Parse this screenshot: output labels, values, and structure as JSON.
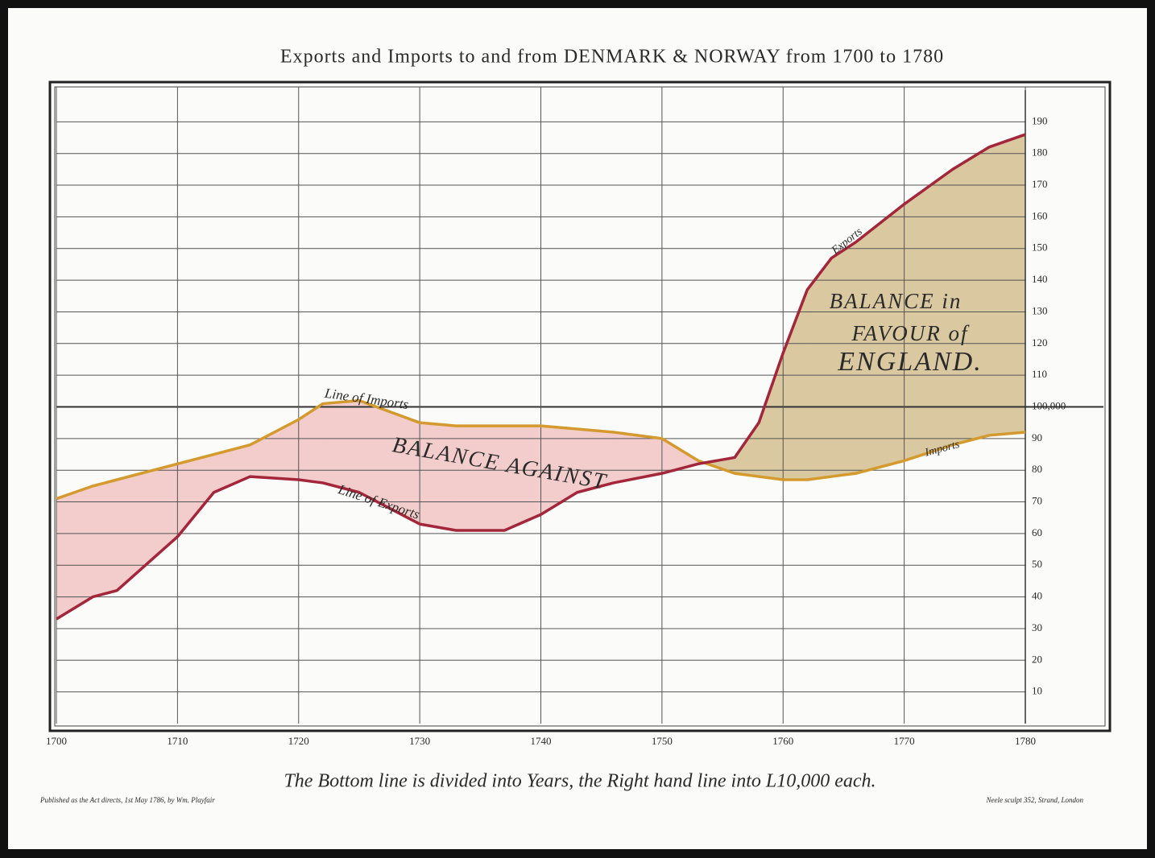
{
  "chart_data": {
    "type": "line",
    "title": "Exports and Imports to and from DENMARK & NORWAY from 1700 to 1780",
    "x": [
      1700,
      1703,
      1705,
      1710,
      1713,
      1716,
      1720,
      1722,
      1725,
      1730,
      1733,
      1737,
      1740,
      1743,
      1746,
      1750,
      1753,
      1756,
      1758,
      1760,
      1762,
      1764,
      1766,
      1770,
      1774,
      1777,
      1780
    ],
    "series": [
      {
        "name": "Imports",
        "color": "#d49a2e",
        "values": [
          71,
          75,
          77,
          82,
          85,
          88,
          96,
          101,
          102,
          95,
          94,
          94,
          94,
          93,
          92,
          90,
          83,
          79,
          78,
          77,
          77,
          78,
          79,
          83,
          88,
          91,
          92
        ]
      },
      {
        "name": "Exports",
        "color": "#a3263a",
        "values": [
          33,
          40,
          42,
          59,
          73,
          78,
          77,
          76,
          73,
          63,
          61,
          61,
          66,
          73,
          76,
          79,
          82,
          84,
          95,
          117,
          137,
          147,
          152,
          164,
          175,
          182,
          186
        ]
      }
    ],
    "xlim": [
      1700,
      1780
    ],
    "xticks": [
      1700,
      1710,
      1720,
      1730,
      1740,
      1750,
      1760,
      1770,
      1780
    ],
    "ylim": [
      0,
      200
    ],
    "yticks": [
      10,
      20,
      30,
      40,
      50,
      60,
      70,
      80,
      90,
      {
        "value": 100,
        "label": "100,000"
      },
      110,
      120,
      130,
      140,
      150,
      160,
      170,
      180,
      190
    ],
    "grid": true,
    "fill_colors": {
      "against": "#f2cdcc",
      "favour": "#d9c8a0"
    },
    "annotations": [
      "Line of Imports",
      "Line of Exports",
      "BALANCE AGAINST",
      "BALANCE in",
      "FAVOUR of",
      "ENGLAND.",
      "Exports",
      "Imports"
    ],
    "footer": "The Bottom line is divided into Years, the Right hand line into L10,000 each.",
    "imprint_left": "Published as the Act directs, 1st May 1786, by Wm. Playfair",
    "imprint_right": "Neele sculpt 352, Strand, London"
  }
}
